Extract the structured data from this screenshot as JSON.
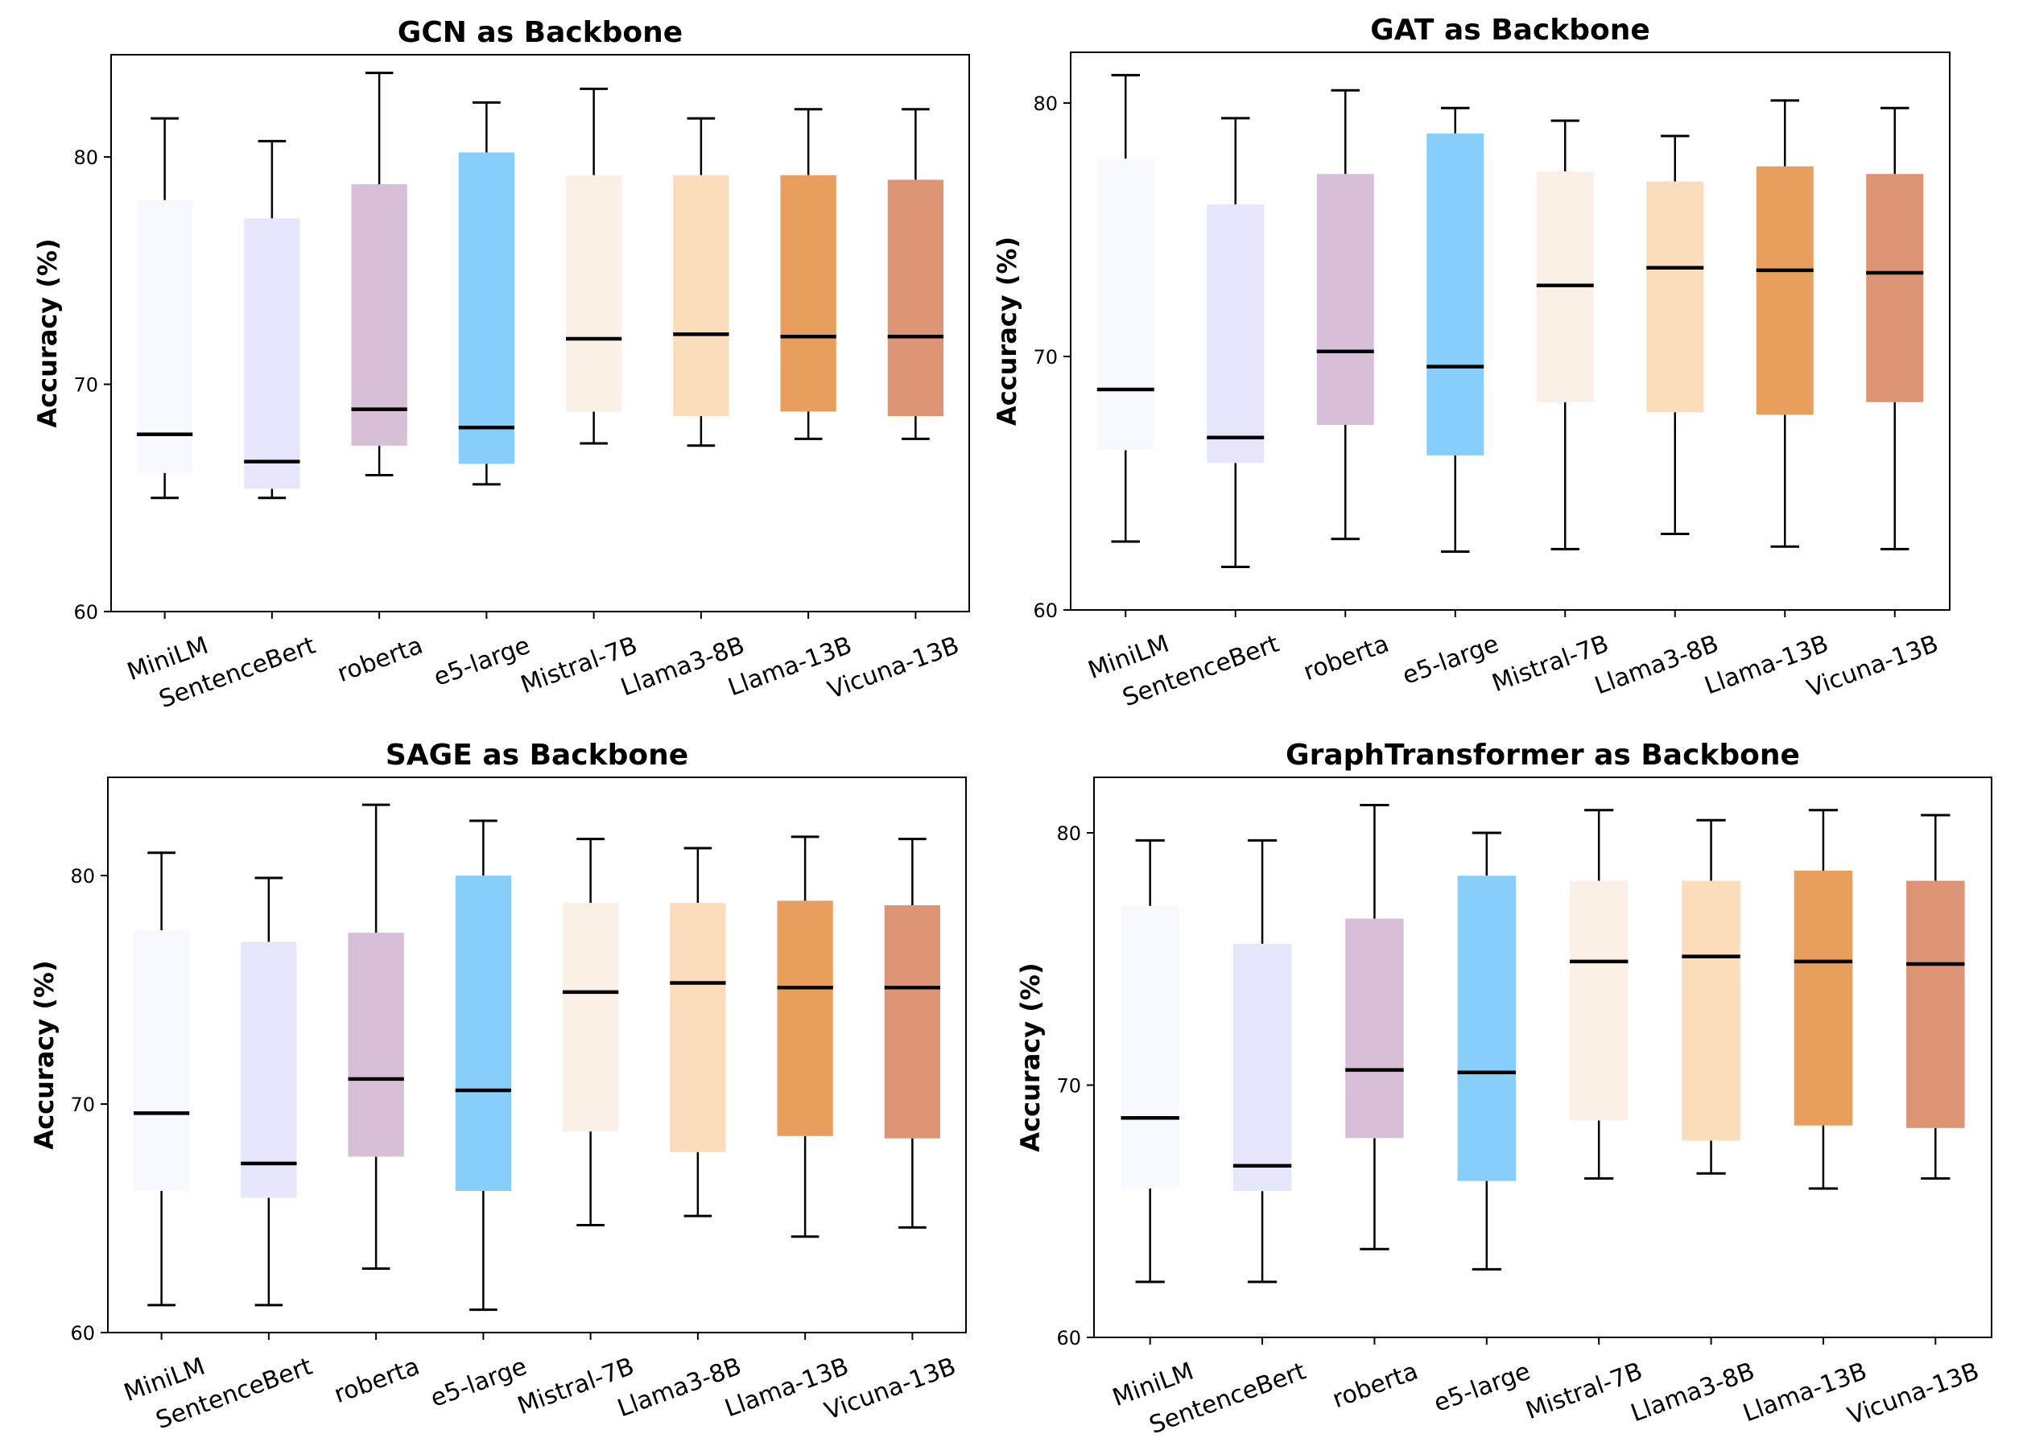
{
  "chart_data": [
    {
      "type": "box",
      "title": "GCN as Backbone",
      "ylabel": "Accuracy (%)",
      "xlabel": "",
      "ylim": [
        60,
        84.5
      ],
      "yticks": [
        60,
        70,
        80
      ],
      "categories": [
        "MiniLM",
        "SentenceBert",
        "roberta",
        "e5-large",
        "Mistral-7B",
        "Llama3-8B",
        "Llama-13B",
        "Vicuna-13B"
      ],
      "boxes": [
        {
          "whislo": 65.0,
          "q1": 66.1,
          "med": 67.8,
          "q3": 78.1,
          "whishi": 81.7
        },
        {
          "whislo": 65.0,
          "q1": 65.4,
          "med": 66.6,
          "q3": 77.3,
          "whishi": 80.7
        },
        {
          "whislo": 66.0,
          "q1": 67.3,
          "med": 68.9,
          "q3": 78.8,
          "whishi": 83.7
        },
        {
          "whislo": 65.6,
          "q1": 66.5,
          "med": 68.1,
          "q3": 80.2,
          "whishi": 82.4
        },
        {
          "whislo": 67.4,
          "q1": 68.8,
          "med": 72.0,
          "q3": 79.2,
          "whishi": 83.0
        },
        {
          "whislo": 67.3,
          "q1": 68.6,
          "med": 72.2,
          "q3": 79.2,
          "whishi": 81.7
        },
        {
          "whislo": 67.6,
          "q1": 68.8,
          "med": 72.1,
          "q3": 79.2,
          "whishi": 82.1
        },
        {
          "whislo": 67.6,
          "q1": 68.6,
          "med": 72.1,
          "q3": 79.0,
          "whishi": 82.1
        }
      ]
    },
    {
      "type": "box",
      "title": "GAT as Backbone",
      "ylabel": "Accuracy (%)",
      "xlabel": "",
      "ylim": [
        60,
        82
      ],
      "yticks": [
        60,
        70,
        80
      ],
      "categories": [
        "MiniLM",
        "SentenceBert",
        "roberta",
        "e5-large",
        "Mistral-7B",
        "Llama3-8B",
        "Llama-13B",
        "Vicuna-13B"
      ],
      "boxes": [
        {
          "whislo": 62.7,
          "q1": 66.3,
          "med": 68.7,
          "q3": 77.8,
          "whishi": 81.1
        },
        {
          "whislo": 61.7,
          "q1": 65.8,
          "med": 66.8,
          "q3": 76.0,
          "whishi": 79.4
        },
        {
          "whislo": 62.8,
          "q1": 67.3,
          "med": 70.2,
          "q3": 77.2,
          "whishi": 80.5
        },
        {
          "whislo": 62.3,
          "q1": 66.1,
          "med": 69.6,
          "q3": 78.8,
          "whishi": 79.8
        },
        {
          "whislo": 62.4,
          "q1": 68.2,
          "med": 72.8,
          "q3": 77.3,
          "whishi": 79.3
        },
        {
          "whislo": 63.0,
          "q1": 67.8,
          "med": 73.5,
          "q3": 76.9,
          "whishi": 78.7
        },
        {
          "whislo": 62.5,
          "q1": 67.7,
          "med": 73.4,
          "q3": 77.5,
          "whishi": 80.1
        },
        {
          "whislo": 62.4,
          "q1": 68.2,
          "med": 73.3,
          "q3": 77.2,
          "whishi": 79.8
        }
      ]
    },
    {
      "type": "box",
      "title": "SAGE as Backbone",
      "ylabel": "Accuracy (%)",
      "xlabel": "",
      "ylim": [
        60,
        84.3
      ],
      "yticks": [
        60,
        70,
        80
      ],
      "categories": [
        "MiniLM",
        "SentenceBert",
        "roberta",
        "e5-large",
        "Mistral-7B",
        "Llama3-8B",
        "Llama-13B",
        "Vicuna-13B"
      ],
      "boxes": [
        {
          "whislo": 61.2,
          "q1": 66.2,
          "med": 69.6,
          "q3": 77.6,
          "whishi": 81.0
        },
        {
          "whislo": 61.2,
          "q1": 65.9,
          "med": 67.4,
          "q3": 77.1,
          "whishi": 79.9
        },
        {
          "whislo": 62.8,
          "q1": 67.7,
          "med": 71.1,
          "q3": 77.5,
          "whishi": 83.1
        },
        {
          "whislo": 61.0,
          "q1": 66.2,
          "med": 70.6,
          "q3": 80.0,
          "whishi": 82.4
        },
        {
          "whislo": 64.7,
          "q1": 68.8,
          "med": 74.9,
          "q3": 78.8,
          "whishi": 81.6
        },
        {
          "whislo": 65.1,
          "q1": 67.9,
          "med": 75.3,
          "q3": 78.8,
          "whishi": 81.2
        },
        {
          "whislo": 64.2,
          "q1": 68.6,
          "med": 75.1,
          "q3": 78.9,
          "whishi": 81.7
        },
        {
          "whislo": 64.6,
          "q1": 68.5,
          "med": 75.1,
          "q3": 78.7,
          "whishi": 81.6
        }
      ]
    },
    {
      "type": "box",
      "title": "GraphTransformer as Backbone",
      "ylabel": "Accuracy (%)",
      "xlabel": "",
      "ylim": [
        60,
        82.2
      ],
      "yticks": [
        60,
        70,
        80
      ],
      "categories": [
        "MiniLM",
        "SentenceBert",
        "roberta",
        "e5-large",
        "Mistral-7B",
        "Llama3-8B",
        "Llama-13B",
        "Vicuna-13B"
      ],
      "boxes": [
        {
          "whislo": 62.2,
          "q1": 65.9,
          "med": 68.7,
          "q3": 77.1,
          "whishi": 79.7
        },
        {
          "whislo": 62.2,
          "q1": 65.8,
          "med": 66.8,
          "q3": 75.6,
          "whishi": 79.7
        },
        {
          "whislo": 63.5,
          "q1": 67.9,
          "med": 70.6,
          "q3": 76.6,
          "whishi": 81.1
        },
        {
          "whislo": 62.7,
          "q1": 66.2,
          "med": 70.5,
          "q3": 78.3,
          "whishi": 80.0
        },
        {
          "whislo": 66.3,
          "q1": 68.6,
          "med": 74.9,
          "q3": 78.1,
          "whishi": 80.9
        },
        {
          "whislo": 66.5,
          "q1": 67.8,
          "med": 75.1,
          "q3": 78.1,
          "whishi": 80.5
        },
        {
          "whislo": 65.9,
          "q1": 68.4,
          "med": 74.9,
          "q3": 78.5,
          "whishi": 80.9
        },
        {
          "whislo": 66.3,
          "q1": 68.3,
          "med": 74.8,
          "q3": 78.1,
          "whishi": 80.7
        }
      ]
    }
  ],
  "colors": [
    "#f8f8ff",
    "#e6e6fa",
    "#d8bfd8",
    "#87cefa",
    "#faf0e6",
    "#fbdcbb",
    "#e89e5c",
    "#dd9475"
  ]
}
